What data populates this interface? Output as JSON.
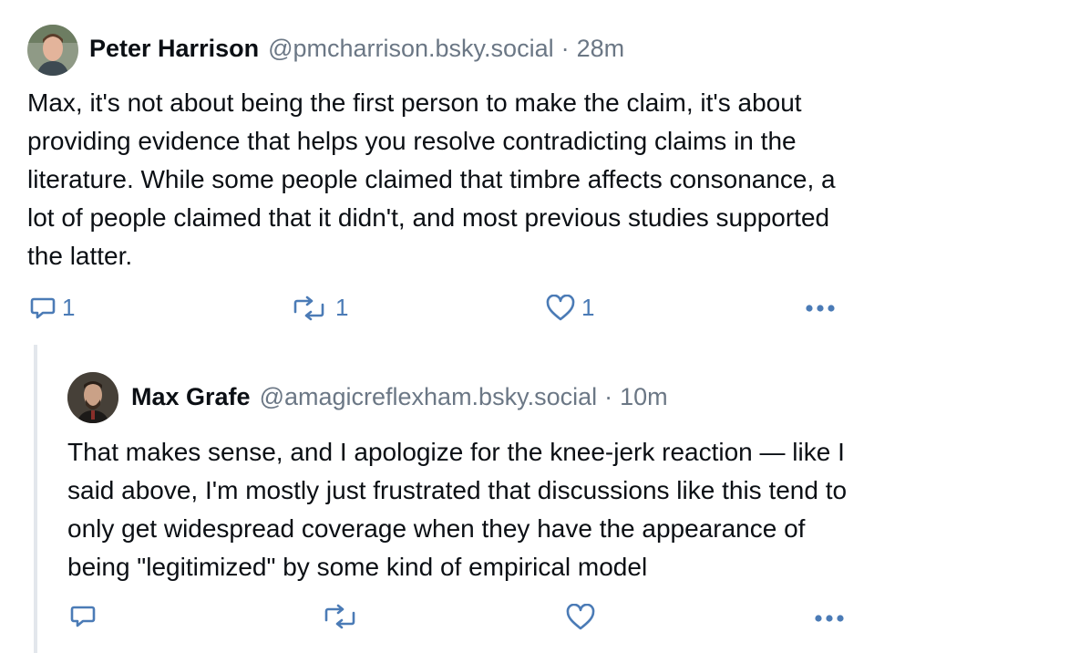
{
  "posts": [
    {
      "author": "Peter Harrison",
      "handle": "@pmcharrison.bsky.social",
      "separator": "·",
      "time": "28m",
      "text_lines": [
        "Max, it's not about being the first person to make the claim, it's about",
        "providing evidence that helps you resolve contradicting claims in the",
        "literature. While some people claimed that timbre affects consonance, a",
        "lot of people claimed that it didn't, and most previous studies supported",
        "the latter."
      ],
      "replies": "1",
      "reposts": "1",
      "likes": "1",
      "icons": {
        "reply": "reply-icon",
        "repost": "repost-icon",
        "like": "heart-icon",
        "more": "more-icon"
      },
      "avatar_color": "#7a8b6a"
    },
    {
      "author": "Max Grafe",
      "handle": "@amagicreflexham.bsky.social",
      "separator": "·",
      "time": "10m",
      "text_lines": [
        "That makes sense, and I apologize for the knee-jerk reaction — like I",
        "said above, I'm mostly just frustrated that discussions like this tend to",
        "only get widespread coverage when they have the appearance of",
        "being \"legitimized\" by some kind of empirical model"
      ],
      "replies": "",
      "reposts": "",
      "likes": "",
      "icons": {
        "reply": "reply-icon",
        "repost": "repost-icon",
        "like": "heart-icon",
        "more": "more-icon"
      },
      "avatar_color": "#4a3f35"
    }
  ],
  "colors": {
    "text": "#0b0f14",
    "muted": "#6b7785",
    "icon": "#4b7bb6",
    "thread_line": "#e3e7ec"
  }
}
